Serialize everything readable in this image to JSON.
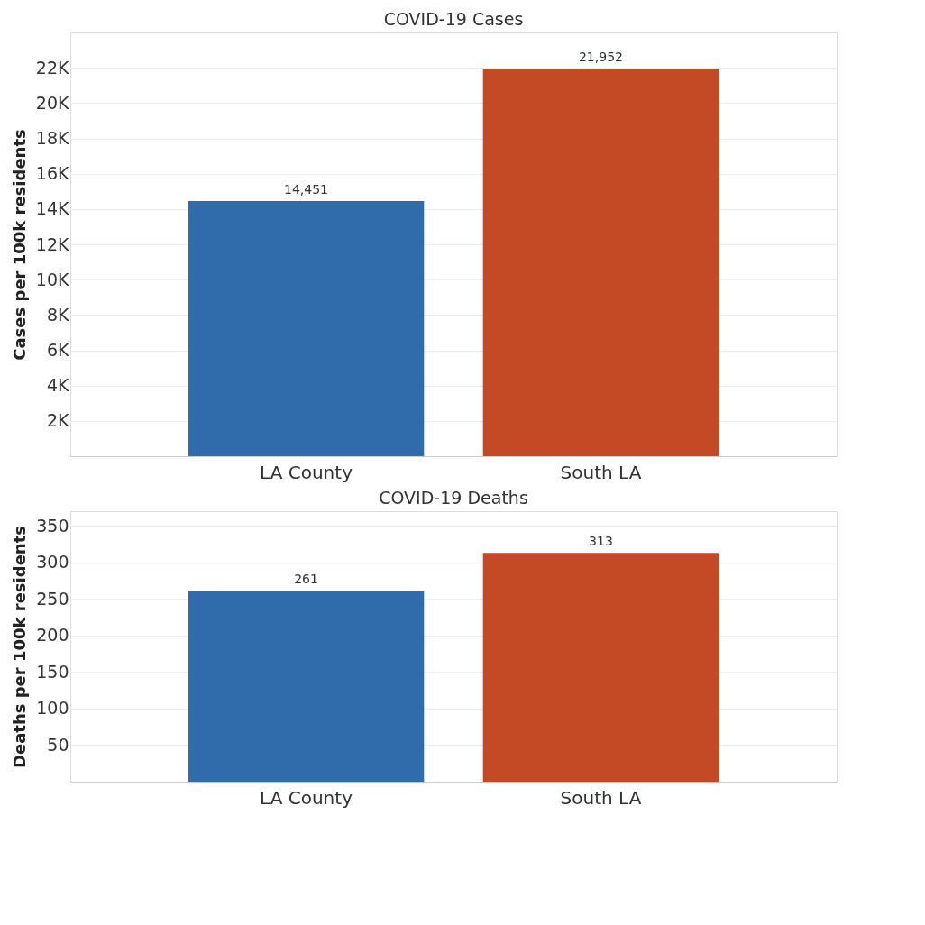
{
  "chart_data": [
    {
      "type": "bar",
      "title": "COVID-19 Cases",
      "ylabel": "Cases per 100k residents",
      "categories": [
        "LA County",
        "South LA"
      ],
      "values": [
        14451,
        21952
      ],
      "colors": [
        "#306bac",
        "#c34a25"
      ],
      "ylim": [
        0,
        24000
      ],
      "yticks": [
        {
          "value": 2000,
          "label": "2K"
        },
        {
          "value": 4000,
          "label": "4K"
        },
        {
          "value": 6000,
          "label": "6K"
        },
        {
          "value": 8000,
          "label": "8K"
        },
        {
          "value": 10000,
          "label": "10K"
        },
        {
          "value": 12000,
          "label": "12K"
        },
        {
          "value": 14000,
          "label": "14K"
        },
        {
          "value": 16000,
          "label": "16K"
        },
        {
          "value": 18000,
          "label": "18K"
        },
        {
          "value": 20000,
          "label": "20K"
        },
        {
          "value": 22000,
          "label": "22K"
        }
      ],
      "grid": "y",
      "value_labels": [
        "14,451",
        "21,952"
      ]
    },
    {
      "type": "bar",
      "title": "COVID-19 Deaths",
      "ylabel": "Deaths per 100k residents",
      "categories": [
        "LA County",
        "South LA"
      ],
      "values": [
        261,
        313
      ],
      "colors": [
        "#306bac",
        "#c34a25"
      ],
      "ylim": [
        0,
        370
      ],
      "yticks": [
        50,
        100,
        150,
        200,
        250,
        300,
        350
      ],
      "grid": "y",
      "data_labels": true
    }
  ]
}
